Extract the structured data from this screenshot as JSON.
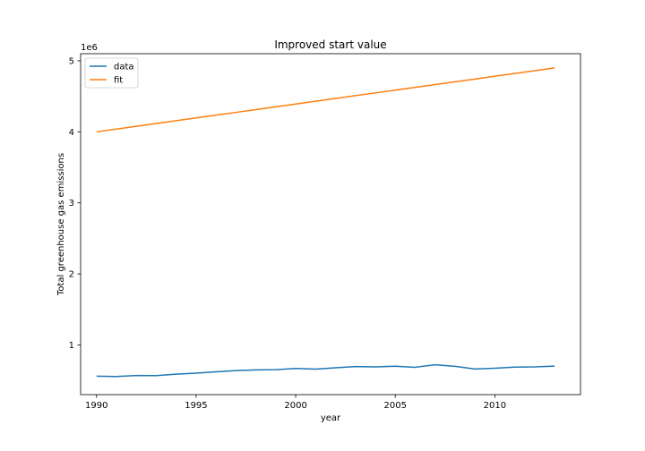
{
  "chart_data": {
    "type": "line",
    "title": "Improved start value",
    "xlabel": "year",
    "ylabel": "Total greenhouse gas emissions",
    "offset_label": "1e6",
    "xlim": [
      1989.2,
      2014.3
    ],
    "ylim": [
      0.3,
      5.1
    ],
    "y_scale_note": "values in units of 1e6",
    "x_ticks": [
      1990,
      1995,
      2000,
      2005,
      2010
    ],
    "y_ticks": [
      1,
      2,
      3,
      4,
      5
    ],
    "legend_position": "top-left",
    "grid": false,
    "x": [
      1990,
      1991,
      1992,
      1993,
      1994,
      1995,
      1996,
      1997,
      1998,
      1999,
      2000,
      2001,
      2002,
      2003,
      2004,
      2005,
      2006,
      2007,
      2008,
      2009,
      2010,
      2011,
      2012,
      2013
    ],
    "series": [
      {
        "name": "data",
        "color": "#1f77b4",
        "values": [
          0.56,
          0.555,
          0.57,
          0.568,
          0.588,
          0.603,
          0.622,
          0.638,
          0.648,
          0.651,
          0.668,
          0.659,
          0.678,
          0.695,
          0.69,
          0.7,
          0.685,
          0.72,
          0.698,
          0.66,
          0.672,
          0.688,
          0.69,
          0.702
        ]
      },
      {
        "name": "fit",
        "color": "#ff7f0e",
        "values": [
          4.0,
          4.039,
          4.078,
          4.117,
          4.157,
          4.196,
          4.235,
          4.274,
          4.313,
          4.352,
          4.391,
          4.43,
          4.47,
          4.509,
          4.548,
          4.587,
          4.626,
          4.665,
          4.704,
          4.743,
          4.783,
          4.822,
          4.861,
          4.9
        ]
      }
    ]
  }
}
